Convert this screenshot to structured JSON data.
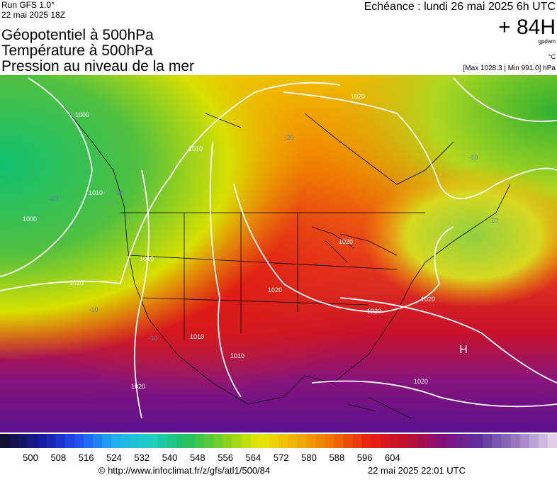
{
  "header": {
    "run": "Run GFS 1.0°",
    "date": "22 mai 2025 18Z",
    "titles": [
      "Géopotentiel à 500hPa",
      "Température à 500hPa",
      "Pression au niveau de la mer"
    ],
    "echeance": "Echéance : lundi 26 mai 2025 6h UTC",
    "lead": "+ 84H",
    "unit": "gpdam",
    "temp_unit": "°C",
    "range": "[Max 1028.3 | Min 991.0] hPa"
  },
  "map": {
    "labels": [
      "1020",
      "1000",
      "1010",
      "1000",
      "1010",
      "1010",
      "1020",
      "1020",
      "1020",
      "1020",
      "1010",
      "1010",
      "1020",
      "1020",
      "1020",
      "-20",
      "-20",
      "-10",
      "-20",
      "-10",
      "-10",
      "-10",
      "H"
    ]
  },
  "colorbar": {
    "ticks": [
      500,
      508,
      516,
      524,
      532,
      540,
      548,
      556,
      564,
      572,
      580,
      588,
      596,
      604
    ]
  },
  "footer": {
    "url": "© http://www.infoclimat.fr/z/gfs/atl1/500/84",
    "time": "22 mai 2025 22:01 UTC"
  }
}
